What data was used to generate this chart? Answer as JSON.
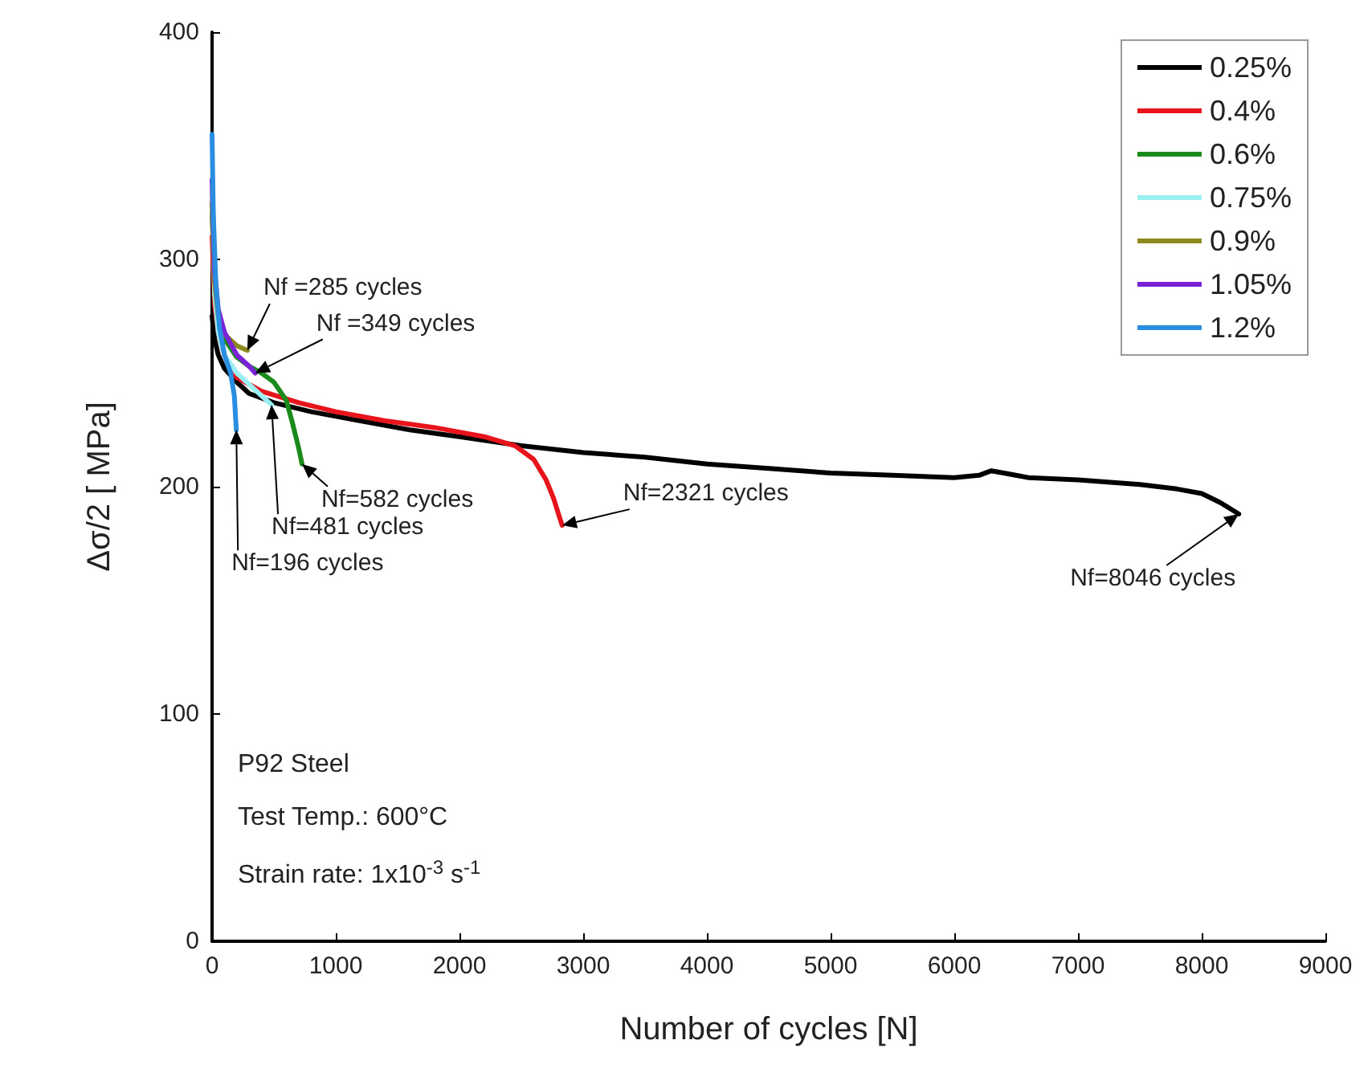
{
  "chart_data": {
    "type": "line",
    "xlabel": "Number of cycles [N]",
    "ylabel": "Δσ/2 [ MPa]",
    "xlim": [
      0,
      9000
    ],
    "xticks": [
      0,
      1000,
      2000,
      3000,
      4000,
      5000,
      6000,
      7000,
      8000,
      9000
    ],
    "ylim": [
      0,
      400
    ],
    "yticks": [
      0,
      100,
      200,
      300,
      400
    ],
    "grid": false,
    "legend": "top right",
    "marker": "none",
    "line_style": "solid",
    "series": [
      {
        "name": "0.25%",
        "color": "#000000",
        "x": [
          0,
          20,
          50,
          100,
          200,
          300,
          500,
          800,
          1200,
          1600,
          2000,
          2500,
          3000,
          3500,
          4000,
          4500,
          5000,
          5500,
          6000,
          6200,
          6300,
          6400,
          6600,
          7000,
          7500,
          7800,
          8000,
          8150,
          8300
        ],
        "values": [
          275,
          265,
          258,
          252,
          246,
          241,
          237,
          233,
          229,
          225,
          222,
          218,
          215,
          213,
          210,
          208,
          206,
          205,
          204,
          205,
          207,
          206,
          204,
          203,
          201,
          199,
          197,
          193,
          188
        ]
      },
      {
        "name": "0.4%",
        "color": "#e8141b",
        "x": [
          0,
          20,
          50,
          100,
          200,
          400,
          700,
          1000,
          1400,
          1800,
          2200,
          2450,
          2600,
          2700,
          2760,
          2800,
          2830
        ],
        "values": [
          310,
          280,
          268,
          258,
          248,
          242,
          237,
          233,
          229,
          226,
          222,
          218,
          212,
          203,
          195,
          188,
          183
        ]
      },
      {
        "name": "0.6%",
        "color": "#1a8a1a",
        "x": [
          0,
          20,
          50,
          100,
          200,
          300,
          400,
          500,
          600,
          650,
          700,
          727
        ],
        "values": [
          320,
          290,
          275,
          265,
          257,
          253,
          250,
          246,
          238,
          228,
          217,
          210
        ]
      },
      {
        "name": "0.75%",
        "color": "#9af0f0",
        "x": [
          0,
          20,
          50,
          100,
          200,
          300,
          400,
          481
        ],
        "values": [
          330,
          285,
          268,
          258,
          250,
          245,
          240,
          236
        ]
      },
      {
        "name": "0.9%",
        "color": "#8c8a1e",
        "x": [
          0,
          20,
          50,
          100,
          200,
          285
        ],
        "values": [
          325,
          290,
          275,
          267,
          262,
          260
        ]
      },
      {
        "name": "1.05%",
        "color": "#7b22d8",
        "x": [
          0,
          20,
          50,
          100,
          200,
          300,
          349
        ],
        "values": [
          335,
          295,
          278,
          268,
          258,
          253,
          250
        ]
      },
      {
        "name": "1.2%",
        "color": "#2a8ee0",
        "x": [
          0,
          10,
          30,
          60,
          100,
          150,
          180,
          196
        ],
        "values": [
          355,
          320,
          290,
          270,
          258,
          250,
          240,
          225
        ]
      }
    ],
    "annotations": [
      {
        "text": "Nf =285 cycles",
        "x": 285,
        "y": 260
      },
      {
        "text": "Nf =349 cycles",
        "x": 349,
        "y": 250
      },
      {
        "text": "Nf=582 cycles",
        "x": 727,
        "y": 210
      },
      {
        "text": "Nf=481 cycles",
        "x": 481,
        "y": 236
      },
      {
        "text": "Nf=196 cycles",
        "x": 196,
        "y": 225
      },
      {
        "text": "Nf=2321 cycles",
        "x": 2830,
        "y": 183
      },
      {
        "text": "Nf=8046 cycles",
        "x": 8300,
        "y": 188
      },
      "P92 Steel",
      "Test Temp.: 600°C",
      "Strain rate: 1x10$^{-3}$ s$^{-1}$"
    ]
  }
}
